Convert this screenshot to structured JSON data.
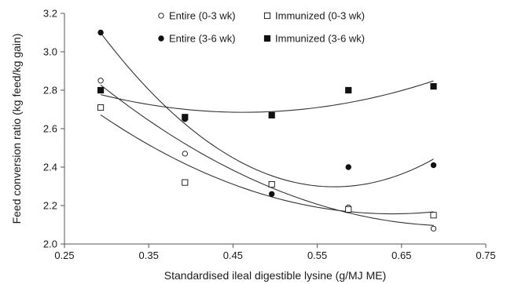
{
  "chart_data": {
    "type": "scatter",
    "title": "",
    "xlabel": "Standardised ileal digestible lysine (g/MJ ME)",
    "ylabel": "Feed conversion ratio (kg feed/kg gain)",
    "xlim": [
      0.25,
      0.75
    ],
    "ylim": [
      2.0,
      3.2
    ],
    "x_ticks": [
      "0.25",
      "0.35",
      "0.45",
      "0.55",
      "0.65",
      "0.75"
    ],
    "y_ticks": [
      "2.0",
      "2.2",
      "2.4",
      "2.6",
      "2.8",
      "3.0",
      "3.2"
    ],
    "grid": false,
    "legend_position": "top",
    "trend": "quadratic",
    "series": [
      {
        "name": "Entire (0-3 wk)",
        "marker": "open-circle",
        "x": [
          0.293,
          0.393,
          0.496,
          0.587,
          0.688
        ],
        "y": [
          2.85,
          2.47,
          2.31,
          2.19,
          2.08
        ]
      },
      {
        "name": "Immunized (0-3 wk)",
        "marker": "open-square",
        "x": [
          0.293,
          0.393,
          0.496,
          0.587,
          0.688
        ],
        "y": [
          2.71,
          2.32,
          2.31,
          2.18,
          2.15
        ]
      },
      {
        "name": "Entire (3-6 wk)",
        "marker": "filled-circle",
        "x": [
          0.293,
          0.393,
          0.496,
          0.587,
          0.688
        ],
        "y": [
          3.1,
          2.65,
          2.26,
          2.4,
          2.41
        ]
      },
      {
        "name": "Immunized (3-6 wk)",
        "marker": "filled-square",
        "x": [
          0.293,
          0.393,
          0.496,
          0.587,
          0.688
        ],
        "y": [
          2.8,
          2.66,
          2.67,
          2.8,
          2.82
        ]
      }
    ],
    "colors": {
      "axis": "#555555",
      "curve": "#333333",
      "marker": "#111111"
    }
  }
}
